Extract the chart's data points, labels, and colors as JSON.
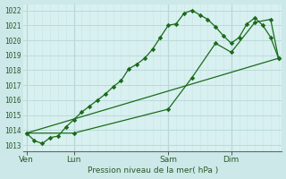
{
  "bg_outer": "#cce8e8",
  "bg_plot": "#d8f0f0",
  "grid_color_major": "#b8d8d8",
  "grid_color_minor": "#c8e4e4",
  "line_color": "#1a6b1a",
  "xlabel": "Pression niveau de la mer( hPa )",
  "ylabel_vals": [
    1013,
    1014,
    1015,
    1016,
    1017,
    1018,
    1019,
    1020,
    1021,
    1022
  ],
  "xtick_labels": [
    "Ven",
    "Lun",
    "Sam",
    "Dim"
  ],
  "xtick_positions": [
    0,
    3,
    9,
    13
  ],
  "n_x": 16,
  "line1_x": [
    0,
    0.5,
    1.0,
    1.5,
    2.0,
    2.5,
    3.0,
    3.5,
    4.0,
    4.5,
    5.0,
    5.5,
    6.0,
    6.5,
    7.0,
    7.5,
    8.0,
    8.5,
    9.0,
    9.5,
    10.0,
    10.5,
    11.0,
    11.5,
    12.0,
    12.5,
    13.0,
    13.5,
    14.0,
    14.5,
    15.0,
    15.5,
    16.0
  ],
  "line1_y": [
    1013.8,
    1013.3,
    1013.1,
    1013.5,
    1013.6,
    1014.2,
    1014.7,
    1015.2,
    1015.6,
    1016.0,
    1016.4,
    1016.9,
    1017.3,
    1018.1,
    1018.4,
    1018.8,
    1019.4,
    1020.2,
    1021.0,
    1021.1,
    1021.8,
    1022.0,
    1021.7,
    1021.4,
    1020.9,
    1020.3,
    1019.8,
    1020.2,
    1021.1,
    1021.5,
    1021.0,
    1020.2,
    1018.8
  ],
  "line2_x": [
    0,
    3.0,
    9.0,
    10.5,
    12.0,
    13.0,
    14.5,
    15.5,
    16.0
  ],
  "line2_y": [
    1013.8,
    1013.8,
    1015.4,
    1017.5,
    1019.8,
    1019.2,
    1021.2,
    1021.4,
    1018.8
  ],
  "line3_x": [
    0,
    16.0
  ],
  "line3_y": [
    1013.8,
    1018.8
  ],
  "ylim": [
    1012.6,
    1022.4
  ],
  "xlim": [
    -0.2,
    16.2
  ]
}
